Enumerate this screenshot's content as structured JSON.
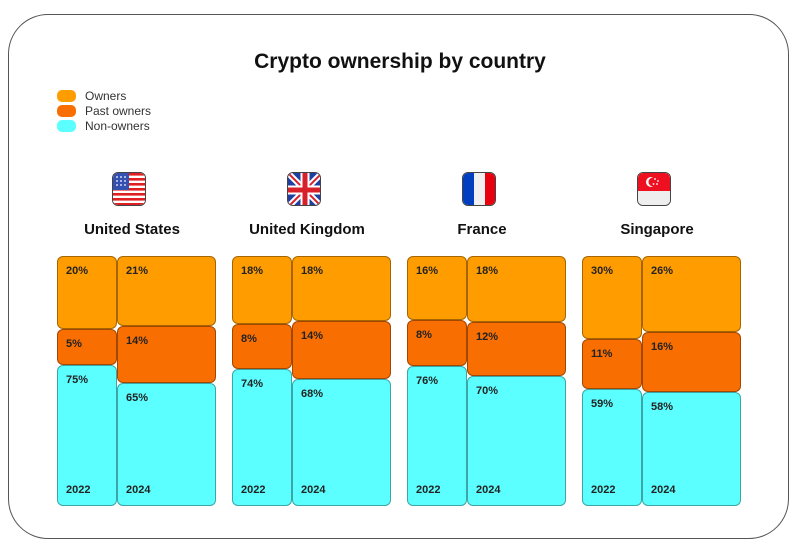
{
  "chart_data": {
    "type": "mosaic",
    "title": "Crypto ownership by country",
    "legend": [
      {
        "name": "Owners",
        "color": "#FF9C00"
      },
      {
        "name": "Past owners",
        "color": "#F86E00"
      },
      {
        "name": "Non-owners",
        "color": "#5CFFFF"
      }
    ],
    "legend_position": "top-left",
    "countries": [
      {
        "name": "United States",
        "flag": "us-flag",
        "years": [
          {
            "year": "2022",
            "values": [
              20,
              5,
              75
            ]
          },
          {
            "year": "2024",
            "values": [
              21,
              14,
              65
            ]
          }
        ]
      },
      {
        "name": "United Kingdom",
        "flag": "uk-flag",
        "years": [
          {
            "year": "2022",
            "values": [
              18,
              8,
              74
            ]
          },
          {
            "year": "2024",
            "values": [
              18,
              14,
              68
            ]
          }
        ]
      },
      {
        "name": "France",
        "flag": "france-flag",
        "years": [
          {
            "year": "2022",
            "values": [
              16,
              8,
              76
            ]
          },
          {
            "year": "2024",
            "values": [
              18,
              12,
              70
            ]
          }
        ]
      },
      {
        "name": "Singapore",
        "flag": "singapore-flag",
        "years": [
          {
            "year": "2022",
            "values": [
              30,
              11,
              59
            ]
          },
          {
            "year": "2024",
            "values": [
              26,
              16,
              58
            ]
          }
        ]
      }
    ]
  }
}
